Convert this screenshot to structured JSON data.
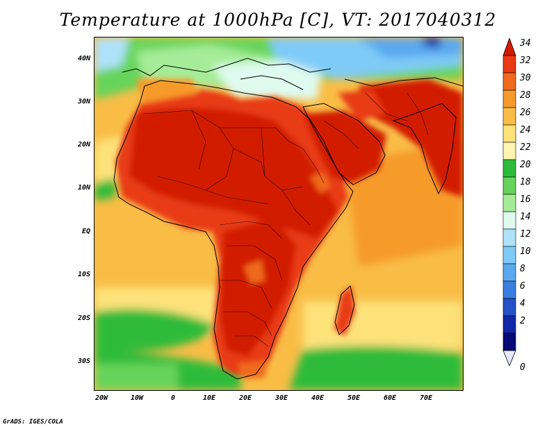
{
  "title": "Temperature at 1000hPa [C], VT: 2017040312",
  "credit": "GrADS: IGES/COLA",
  "lat_ticks": [
    "40N",
    "30N",
    "20N",
    "10N",
    "EQ",
    "10S",
    "20S",
    "30S"
  ],
  "lon_ticks": [
    "20W",
    "10W",
    "0",
    "10E",
    "20E",
    "30E",
    "40E",
    "50E",
    "60E",
    "70E"
  ],
  "colorbar": {
    "labels": [
      "34",
      "32",
      "30",
      "28",
      "26",
      "24",
      "22",
      "20",
      "18",
      "16",
      "14",
      "12",
      "10",
      "8",
      "6",
      "4",
      "2",
      "0"
    ],
    "colors": [
      "#d21a00",
      "#e83a14",
      "#f06a1e",
      "#f69a2c",
      "#f9bd46",
      "#fde27a",
      "#fff4b0",
      "#2dbb3b",
      "#66d45a",
      "#a6ec98",
      "#dffbf0",
      "#aee2fa",
      "#7fcbf7",
      "#5aa9ee",
      "#3a7ee0",
      "#2450c8",
      "#1028a8",
      "#080a78"
    ]
  }
}
